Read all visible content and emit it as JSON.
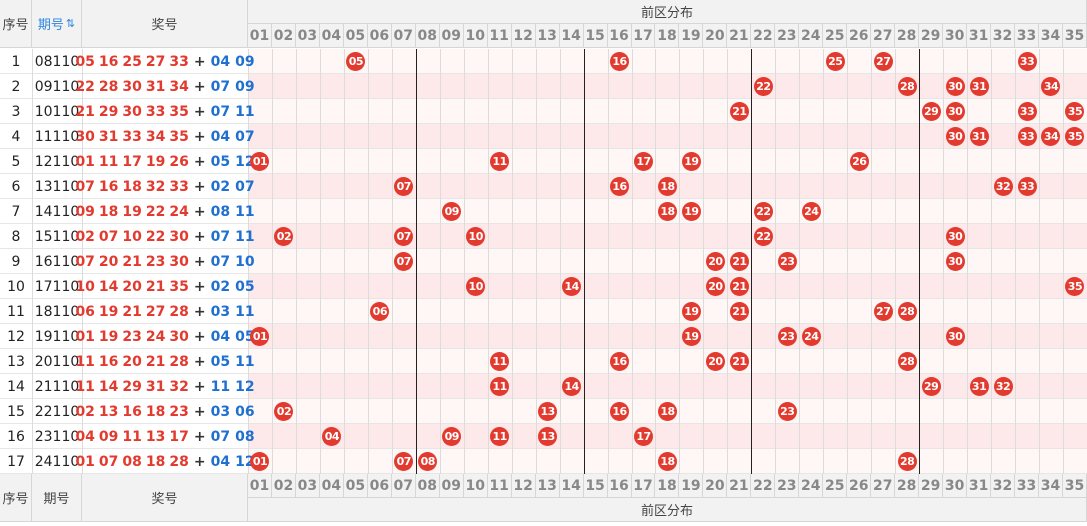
{
  "header": {
    "seq": "序号",
    "period": "期号",
    "sort_icon": "⇅",
    "numbers": "奖号",
    "zone": "前区分布"
  },
  "footer": {
    "seq": "序号",
    "period": "期号",
    "numbers": "奖号",
    "zone": "前区分布"
  },
  "columns": [
    "01",
    "02",
    "03",
    "04",
    "05",
    "06",
    "07",
    "08",
    "09",
    "10",
    "11",
    "12",
    "13",
    "14",
    "15",
    "16",
    "17",
    "18",
    "19",
    "20",
    "21",
    "22",
    "23",
    "24",
    "25",
    "26",
    "27",
    "28",
    "29",
    "30",
    "31",
    "32",
    "33",
    "34",
    "35"
  ],
  "plus": "+",
  "rows": [
    {
      "seq": 1,
      "period": "08110",
      "front": [
        "05",
        "16",
        "25",
        "27",
        "33"
      ],
      "back": [
        "04",
        "09"
      ]
    },
    {
      "seq": 2,
      "period": "09110",
      "front": [
        "22",
        "28",
        "30",
        "31",
        "34"
      ],
      "back": [
        "07",
        "09"
      ]
    },
    {
      "seq": 3,
      "period": "10110",
      "front": [
        "21",
        "29",
        "30",
        "33",
        "35"
      ],
      "back": [
        "07",
        "11"
      ]
    },
    {
      "seq": 4,
      "period": "11110",
      "front": [
        "30",
        "31",
        "33",
        "34",
        "35"
      ],
      "back": [
        "04",
        "07"
      ]
    },
    {
      "seq": 5,
      "period": "12110",
      "front": [
        "01",
        "11",
        "17",
        "19",
        "26"
      ],
      "back": [
        "05",
        "12"
      ]
    },
    {
      "seq": 6,
      "period": "13110",
      "front": [
        "07",
        "16",
        "18",
        "32",
        "33"
      ],
      "back": [
        "02",
        "07"
      ]
    },
    {
      "seq": 7,
      "period": "14110",
      "front": [
        "09",
        "18",
        "19",
        "22",
        "24"
      ],
      "back": [
        "08",
        "11"
      ]
    },
    {
      "seq": 8,
      "period": "15110",
      "front": [
        "02",
        "07",
        "10",
        "22",
        "30"
      ],
      "back": [
        "07",
        "11"
      ]
    },
    {
      "seq": 9,
      "period": "16110",
      "front": [
        "07",
        "20",
        "21",
        "23",
        "30"
      ],
      "back": [
        "07",
        "10"
      ]
    },
    {
      "seq": 10,
      "period": "17110",
      "front": [
        "10",
        "14",
        "20",
        "21",
        "35"
      ],
      "back": [
        "02",
        "05"
      ]
    },
    {
      "seq": 11,
      "period": "18110",
      "front": [
        "06",
        "19",
        "21",
        "27",
        "28"
      ],
      "back": [
        "03",
        "11"
      ]
    },
    {
      "seq": 12,
      "period": "19110",
      "front": [
        "01",
        "19",
        "23",
        "24",
        "30"
      ],
      "back": [
        "04",
        "05"
      ]
    },
    {
      "seq": 13,
      "period": "20110",
      "front": [
        "11",
        "16",
        "20",
        "21",
        "28"
      ],
      "back": [
        "05",
        "11"
      ]
    },
    {
      "seq": 14,
      "period": "21110",
      "front": [
        "11",
        "14",
        "29",
        "31",
        "32"
      ],
      "back": [
        "11",
        "12"
      ]
    },
    {
      "seq": 15,
      "period": "22110",
      "front": [
        "02",
        "13",
        "16",
        "18",
        "23"
      ],
      "back": [
        "03",
        "06"
      ]
    },
    {
      "seq": 16,
      "period": "23110",
      "front": [
        "04",
        "09",
        "11",
        "13",
        "17"
      ],
      "back": [
        "07",
        "08"
      ]
    },
    {
      "seq": 17,
      "period": "24110",
      "front": [
        "01",
        "07",
        "08",
        "18",
        "28"
      ],
      "back": [
        "04",
        "12"
      ]
    }
  ]
}
